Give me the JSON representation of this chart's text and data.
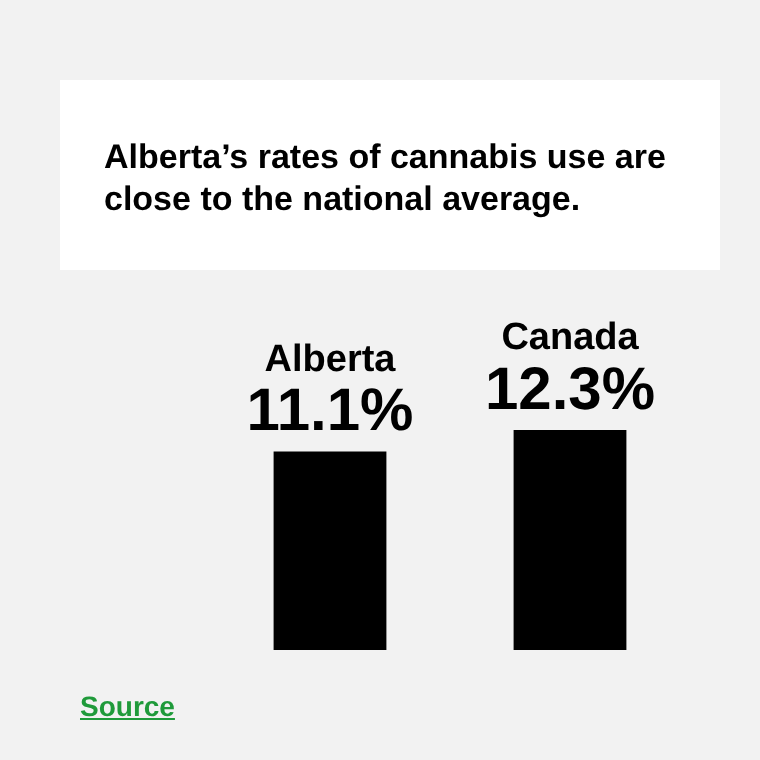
{
  "chart_data": {
    "type": "bar",
    "title": "Alberta’s rates of cannabis use are close to the national average.",
    "categories": [
      "Alberta",
      "Canada"
    ],
    "values": [
      11.1,
      12.3
    ],
    "color": "#000000",
    "value_labels": [
      "11.1%",
      "12.3%"
    ],
    "annotations": [
      "Source"
    ]
  }
}
